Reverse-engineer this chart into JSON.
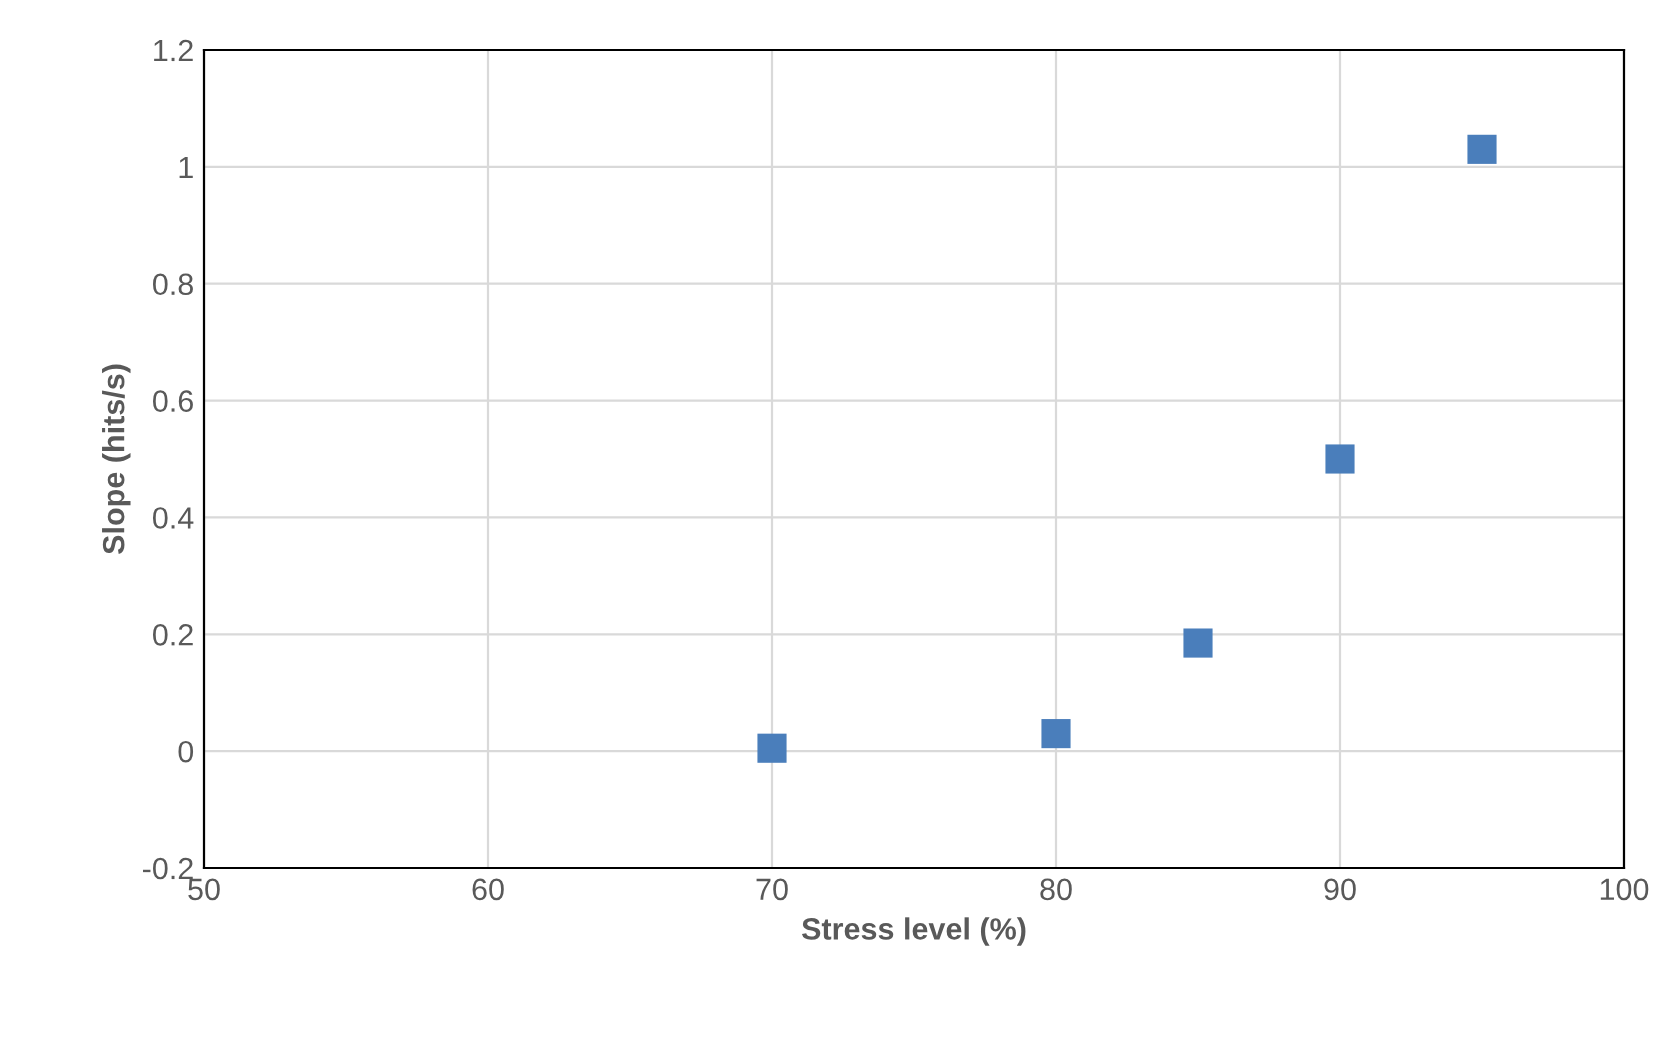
{
  "chart_data": {
    "type": "scatter",
    "xlabel": "Stress level (%)",
    "ylabel": "Slope (hits/s)",
    "x": [
      70,
      80,
      85,
      90,
      95
    ],
    "series": [
      {
        "color": "#4a7ebb",
        "values": [
          0.005,
          0.03,
          0.185,
          0.5,
          1.03
        ]
      }
    ],
    "xlim": [
      50,
      100
    ],
    "xticks": [
      50,
      60,
      70,
      80,
      90,
      100
    ],
    "ylim": [
      -0.2,
      1.2
    ],
    "yticks": [
      -0.2,
      0,
      0.2,
      0.4,
      0.6,
      0.8,
      1,
      1.2
    ],
    "grid": true,
    "marker": "square"
  }
}
